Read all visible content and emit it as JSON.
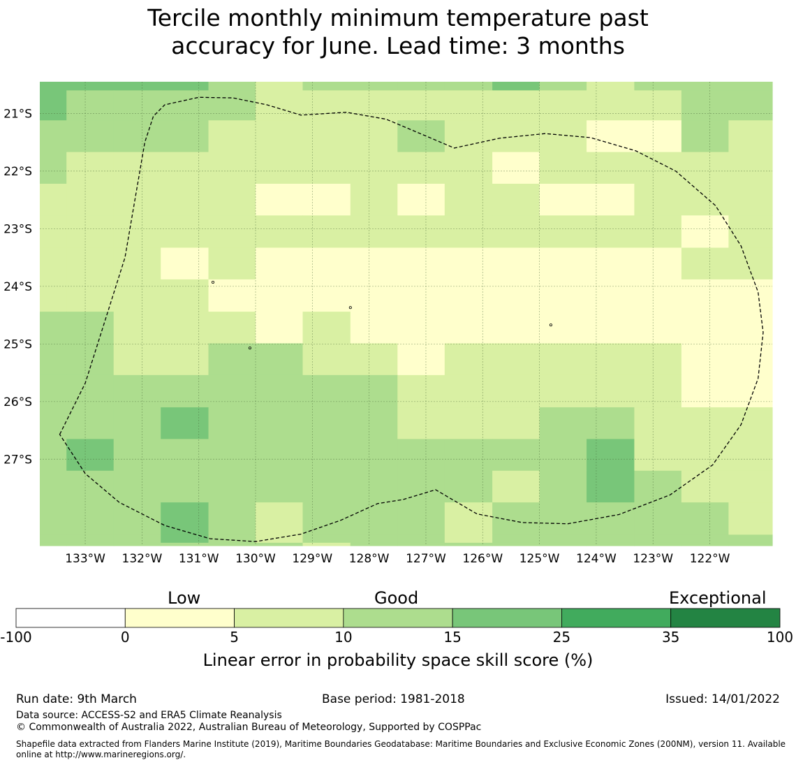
{
  "title": {
    "line1": "Tercile monthly minimum temperature past",
    "line2": "accuracy for June. Lead time: 3 months"
  },
  "map": {
    "lon_range": [
      -133.8,
      -120.9
    ],
    "lat_range": [
      -28.5,
      -20.45
    ],
    "lon_ticks": [
      {
        "value": -133,
        "label": "133°W"
      },
      {
        "value": -132,
        "label": "132°W"
      },
      {
        "value": -131,
        "label": "131°W"
      },
      {
        "value": -130,
        "label": "130°W"
      },
      {
        "value": -129,
        "label": "129°W"
      },
      {
        "value": -128,
        "label": "128°W"
      },
      {
        "value": -127,
        "label": "127°W"
      },
      {
        "value": -126,
        "label": "126°W"
      },
      {
        "value": -125,
        "label": "125°W"
      },
      {
        "value": -124,
        "label": "124°W"
      },
      {
        "value": -123,
        "label": "123°W"
      },
      {
        "value": -122,
        "label": "122°W"
      }
    ],
    "lat_ticks": [
      {
        "value": -21,
        "label": "21°S"
      },
      {
        "value": -22,
        "label": "22°S"
      },
      {
        "value": -23,
        "label": "23°S"
      },
      {
        "value": -24,
        "label": "24°S"
      },
      {
        "value": -25,
        "label": "25°S"
      },
      {
        "value": -26,
        "label": "26°S"
      },
      {
        "value": -27,
        "label": "27°S"
      }
    ],
    "grid": {
      "lon_edges": [
        -133.8,
        -133.33,
        -132.5,
        -131.67,
        -130.83,
        -130.0,
        -129.17,
        -128.33,
        -127.5,
        -126.67,
        -125.83,
        -125.0,
        -124.17,
        -123.33,
        -122.5,
        -121.67,
        -120.9
      ],
      "lat_edges": [
        -20.45,
        -20.6,
        -21.12,
        -21.67,
        -22.22,
        -22.77,
        -23.33,
        -23.88,
        -24.44,
        -24.99,
        -25.54,
        -26.1,
        -26.65,
        -27.2,
        -27.75,
        -28.31,
        -28.45,
        -28.5
      ],
      "values": [
        [
          17,
          17,
          17,
          17,
          12,
          7,
          12,
          12,
          12,
          12,
          17,
          12,
          7,
          12,
          12,
          12
        ],
        [
          17,
          12,
          12,
          12,
          12,
          7,
          7,
          7,
          7,
          7,
          7,
          7,
          7,
          7,
          12,
          12
        ],
        [
          12,
          12,
          12,
          12,
          7,
          7,
          7,
          7,
          12,
          7,
          7,
          7,
          2,
          2,
          12,
          7
        ],
        [
          12,
          7,
          7,
          7,
          7,
          7,
          7,
          7,
          7,
          7,
          2,
          7,
          7,
          7,
          7,
          7
        ],
        [
          7,
          7,
          7,
          7,
          7,
          2,
          2,
          7,
          2,
          7,
          7,
          2,
          2,
          7,
          7,
          7
        ],
        [
          7,
          7,
          7,
          7,
          7,
          7,
          7,
          7,
          7,
          7,
          7,
          7,
          7,
          7,
          2,
          7
        ],
        [
          7,
          7,
          7,
          2,
          7,
          2,
          2,
          2,
          2,
          2,
          2,
          2,
          2,
          2,
          7,
          7
        ],
        [
          7,
          7,
          7,
          7,
          2,
          2,
          2,
          2,
          2,
          2,
          2,
          2,
          2,
          2,
          2,
          2
        ],
        [
          12,
          12,
          7,
          7,
          7,
          2,
          7,
          2,
          2,
          2,
          2,
          2,
          2,
          2,
          2,
          2
        ],
        [
          12,
          12,
          7,
          7,
          12,
          12,
          7,
          7,
          2,
          7,
          7,
          7,
          7,
          7,
          2,
          2
        ],
        [
          12,
          12,
          12,
          12,
          12,
          12,
          12,
          12,
          7,
          7,
          7,
          7,
          7,
          7,
          2,
          2
        ],
        [
          12,
          12,
          12,
          17,
          12,
          12,
          12,
          12,
          7,
          7,
          7,
          12,
          12,
          7,
          7,
          7
        ],
        [
          12,
          17,
          12,
          12,
          12,
          12,
          12,
          12,
          12,
          12,
          12,
          12,
          17,
          7,
          7,
          7
        ],
        [
          12,
          12,
          12,
          12,
          12,
          12,
          12,
          12,
          12,
          12,
          7,
          12,
          17,
          12,
          7,
          7
        ],
        [
          12,
          12,
          12,
          17,
          12,
          7,
          12,
          12,
          12,
          7,
          12,
          12,
          12,
          12,
          12,
          7
        ],
        [
          12,
          12,
          12,
          17,
          12,
          7,
          12,
          12,
          12,
          7,
          12,
          12,
          12,
          12,
          12,
          12
        ],
        [
          12,
          12,
          12,
          12,
          12,
          12,
          7,
          12,
          12,
          12,
          12,
          12,
          12,
          12,
          12,
          12
        ]
      ]
    },
    "eez_boundary": [
      [
        -133.45,
        -26.57
      ],
      [
        -133.0,
        -25.68
      ],
      [
        -132.3,
        -23.5
      ],
      [
        -131.95,
        -21.5
      ],
      [
        -131.8,
        -21.05
      ],
      [
        -131.6,
        -20.85
      ],
      [
        -131.0,
        -20.72
      ],
      [
        -130.4,
        -20.73
      ],
      [
        -129.8,
        -20.85
      ],
      [
        -129.2,
        -21.03
      ],
      [
        -128.4,
        -20.98
      ],
      [
        -127.7,
        -21.1
      ],
      [
        -127.1,
        -21.35
      ],
      [
        -126.5,
        -21.6
      ],
      [
        -125.7,
        -21.43
      ],
      [
        -124.9,
        -21.35
      ],
      [
        -124.1,
        -21.42
      ],
      [
        -123.3,
        -21.65
      ],
      [
        -122.6,
        -22.0
      ],
      [
        -121.9,
        -22.6
      ],
      [
        -121.45,
        -23.3
      ],
      [
        -121.15,
        -24.1
      ],
      [
        -121.06,
        -24.8
      ],
      [
        -121.15,
        -25.6
      ],
      [
        -121.45,
        -26.4
      ],
      [
        -121.95,
        -27.1
      ],
      [
        -122.7,
        -27.62
      ],
      [
        -123.6,
        -27.96
      ],
      [
        -124.5,
        -28.12
      ],
      [
        -125.3,
        -28.1
      ],
      [
        -126.1,
        -27.95
      ],
      [
        -126.83,
        -27.53
      ],
      [
        -127.4,
        -27.7
      ],
      [
        -127.85,
        -27.77
      ],
      [
        -128.5,
        -28.06
      ],
      [
        -129.2,
        -28.3
      ],
      [
        -130.0,
        -28.43
      ],
      [
        -130.8,
        -28.38
      ],
      [
        -131.6,
        -28.15
      ],
      [
        -132.4,
        -27.75
      ],
      [
        -133.0,
        -27.25
      ],
      [
        -133.45,
        -26.57
      ]
    ],
    "islands": [
      {
        "lon": -130.75,
        "lat": -23.93
      },
      {
        "lon": -128.33,
        "lat": -24.37
      },
      {
        "lon": -124.8,
        "lat": -24.67
      },
      {
        "lon": -130.1,
        "lat": -25.07
      }
    ]
  },
  "colorbar": {
    "headings": {
      "low": "Low",
      "good": "Good",
      "exceptional": "Exceptional"
    },
    "bins": [
      {
        "from": -100,
        "to": 0,
        "color": "#ffffff"
      },
      {
        "from": 0,
        "to": 5,
        "color": "#ffffcc"
      },
      {
        "from": 5,
        "to": 10,
        "color": "#d9f0a3"
      },
      {
        "from": 10,
        "to": 15,
        "color": "#addd8e"
      },
      {
        "from": 15,
        "to": 25,
        "color": "#78c679"
      },
      {
        "from": 25,
        "to": 35,
        "color": "#41ab5d"
      },
      {
        "from": 35,
        "to": 100,
        "color": "#238443"
      }
    ],
    "tick_labels": [
      "-100",
      "0",
      "5",
      "10",
      "15",
      "25",
      "35",
      "100"
    ],
    "label": "Linear error in probability space skill score (%)"
  },
  "footer": {
    "run_date": "Run date: 9th March",
    "base_period": "Base period: 1981-2018",
    "issued": "Issued: 14/01/2022",
    "data_source": "Data source: ACCESS-S2 and ERA5 Climate Reanalysis",
    "copyright": "© Commonwealth of Australia 2022, Australian Bureau of Meteorology, Supported by COSPPac",
    "shapefile": "Shapefile data extracted from Flanders Marine Institute (2019), Maritime Boundaries Geodatabase: Maritime Boundaries and Exclusive Economic Zones (200NM), version 11. Available online at http://www.marineregions.org/."
  }
}
